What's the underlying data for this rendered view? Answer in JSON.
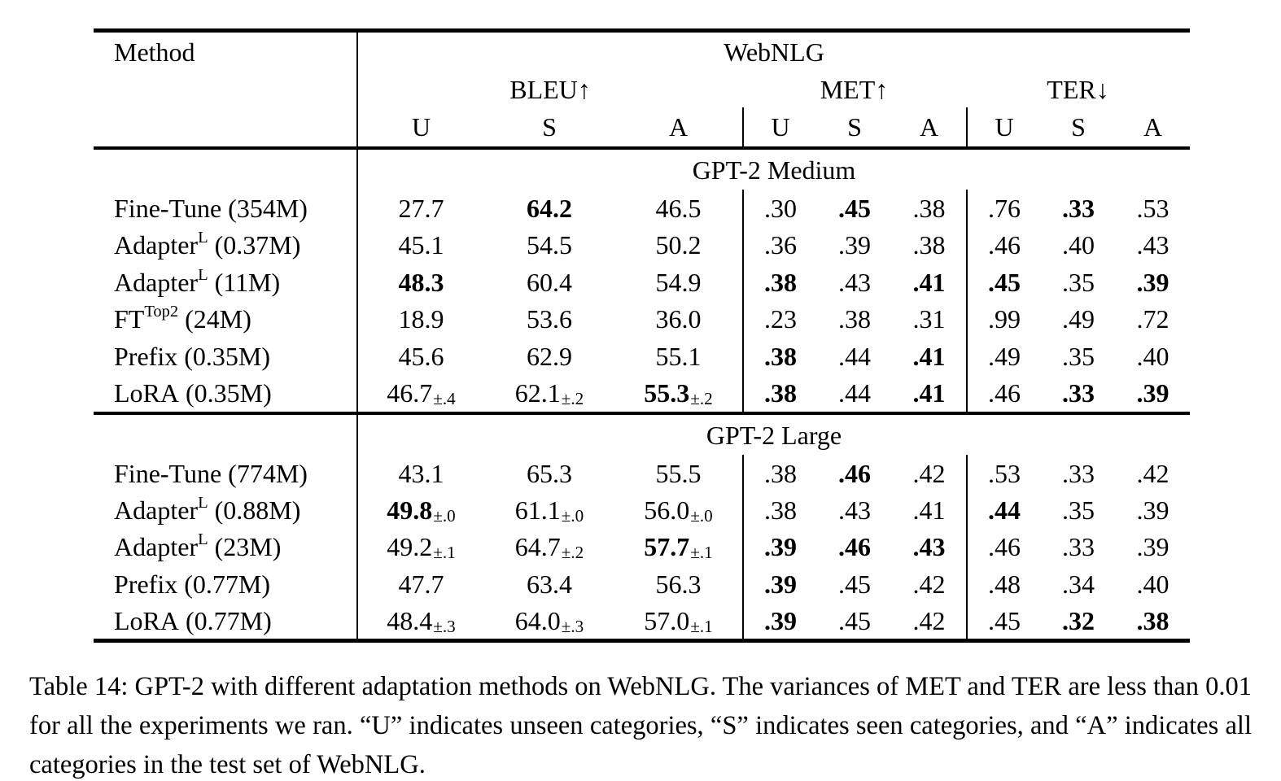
{
  "colors": {
    "text": "#000000",
    "background": "#ffffff",
    "rules": "#000000"
  },
  "table": {
    "header": {
      "method_label": "Method",
      "group_label": "WebNLG",
      "metrics": [
        {
          "label": "BLEU",
          "arrow": "↑"
        },
        {
          "label": "MET",
          "arrow": "↑"
        },
        {
          "label": "TER",
          "arrow": "↓"
        }
      ],
      "sub_columns": [
        "U",
        "S",
        "A"
      ]
    },
    "sections": [
      {
        "title": "GPT-2 Medium",
        "rows": [
          {
            "method": {
              "name": "Fine-Tune",
              "sup": "",
              "params": "(354M)"
            },
            "cells": [
              {
                "text": "27.7"
              },
              {
                "text": "64.2",
                "bold": true
              },
              {
                "text": "46.5"
              },
              {
                "text": ".30"
              },
              {
                "text": ".45",
                "bold": true
              },
              {
                "text": ".38"
              },
              {
                "text": ".76"
              },
              {
                "text": ".33",
                "bold": true
              },
              {
                "text": ".53"
              }
            ]
          },
          {
            "method": {
              "name": "Adapter",
              "sup": "L",
              "params": "(0.37M)"
            },
            "cells": [
              {
                "text": "45.1"
              },
              {
                "text": "54.5"
              },
              {
                "text": "50.2"
              },
              {
                "text": ".36"
              },
              {
                "text": ".39"
              },
              {
                "text": ".38"
              },
              {
                "text": ".46"
              },
              {
                "text": ".40"
              },
              {
                "text": ".43"
              }
            ]
          },
          {
            "method": {
              "name": "Adapter",
              "sup": "L",
              "params": "(11M)"
            },
            "cells": [
              {
                "text": "48.3",
                "bold": true
              },
              {
                "text": "60.4"
              },
              {
                "text": "54.9"
              },
              {
                "text": ".38",
                "bold": true
              },
              {
                "text": ".43"
              },
              {
                "text": ".41",
                "bold": true
              },
              {
                "text": ".45",
                "bold": true
              },
              {
                "text": ".35"
              },
              {
                "text": ".39",
                "bold": true
              }
            ]
          },
          {
            "method": {
              "name": "FT",
              "sup": "Top2",
              "params": "(24M)"
            },
            "cells": [
              {
                "text": "18.9"
              },
              {
                "text": "53.6"
              },
              {
                "text": "36.0"
              },
              {
                "text": ".23"
              },
              {
                "text": ".38"
              },
              {
                "text": ".31"
              },
              {
                "text": ".99"
              },
              {
                "text": ".49"
              },
              {
                "text": ".72"
              }
            ]
          },
          {
            "method": {
              "name": "Prefix",
              "sup": "",
              "params": "(0.35M)"
            },
            "cells": [
              {
                "text": "45.6"
              },
              {
                "text": "62.9"
              },
              {
                "text": "55.1"
              },
              {
                "text": ".38",
                "bold": true
              },
              {
                "text": ".44"
              },
              {
                "text": ".41",
                "bold": true
              },
              {
                "text": ".49"
              },
              {
                "text": ".35"
              },
              {
                "text": ".40"
              }
            ]
          },
          {
            "method": {
              "name": "LoRA",
              "sup": "",
              "params": "(0.35M)"
            },
            "cells": [
              {
                "text": "46.7",
                "sub": "±.4"
              },
              {
                "text": "62.1",
                "sub": "±.2"
              },
              {
                "text": "55.3",
                "sub": "±.2",
                "bold": true
              },
              {
                "text": ".38",
                "bold": true
              },
              {
                "text": ".44"
              },
              {
                "text": ".41",
                "bold": true
              },
              {
                "text": ".46"
              },
              {
                "text": ".33",
                "bold": true
              },
              {
                "text": ".39",
                "bold": true
              }
            ]
          }
        ]
      },
      {
        "title": "GPT-2 Large",
        "rows": [
          {
            "method": {
              "name": "Fine-Tune",
              "sup": "",
              "params": "(774M)"
            },
            "cells": [
              {
                "text": "43.1"
              },
              {
                "text": "65.3"
              },
              {
                "text": "55.5"
              },
              {
                "text": ".38"
              },
              {
                "text": ".46",
                "bold": true
              },
              {
                "text": ".42"
              },
              {
                "text": ".53"
              },
              {
                "text": ".33"
              },
              {
                "text": ".42"
              }
            ]
          },
          {
            "method": {
              "name": "Adapter",
              "sup": "L",
              "params": "(0.88M)"
            },
            "cells": [
              {
                "text": "49.8",
                "sub": "±.0",
                "bold": true
              },
              {
                "text": "61.1",
                "sub": "±.0"
              },
              {
                "text": "56.0",
                "sub": "±.0"
              },
              {
                "text": ".38"
              },
              {
                "text": ".43"
              },
              {
                "text": ".41"
              },
              {
                "text": ".44",
                "bold": true
              },
              {
                "text": ".35"
              },
              {
                "text": ".39"
              }
            ]
          },
          {
            "method": {
              "name": "Adapter",
              "sup": "L",
              "params": "(23M)"
            },
            "cells": [
              {
                "text": "49.2",
                "sub": "±.1"
              },
              {
                "text": "64.7",
                "sub": "±.2"
              },
              {
                "text": "57.7",
                "sub": "±.1",
                "bold": true
              },
              {
                "text": ".39",
                "bold": true
              },
              {
                "text": ".46",
                "bold": true
              },
              {
                "text": ".43",
                "bold": true
              },
              {
                "text": ".46"
              },
              {
                "text": ".33"
              },
              {
                "text": ".39"
              }
            ]
          },
          {
            "method": {
              "name": "Prefix",
              "sup": "",
              "params": "(0.77M)"
            },
            "cells": [
              {
                "text": "47.7"
              },
              {
                "text": "63.4"
              },
              {
                "text": "56.3"
              },
              {
                "text": ".39",
                "bold": true
              },
              {
                "text": ".45"
              },
              {
                "text": ".42"
              },
              {
                "text": ".48"
              },
              {
                "text": ".34"
              },
              {
                "text": ".40"
              }
            ]
          },
          {
            "method": {
              "name": "LoRA",
              "sup": "",
              "params": "(0.77M)"
            },
            "cells": [
              {
                "text": "48.4",
                "sub": "±.3"
              },
              {
                "text": "64.0",
                "sub": "±.3"
              },
              {
                "text": "57.0",
                "sub": "±.1"
              },
              {
                "text": ".39",
                "bold": true
              },
              {
                "text": ".45"
              },
              {
                "text": ".42"
              },
              {
                "text": ".45"
              },
              {
                "text": ".32",
                "bold": true
              },
              {
                "text": ".38",
                "bold": true
              }
            ]
          }
        ]
      }
    ]
  },
  "caption": {
    "text": "Table 14: GPT-2 with different adaptation methods on WebNLG. The variances of MET and TER are less than 0.01 for all the experiments we ran. “U” indicates unseen categories, “S” indicates seen categories, and “A” indicates all categories in the test set of WebNLG."
  }
}
